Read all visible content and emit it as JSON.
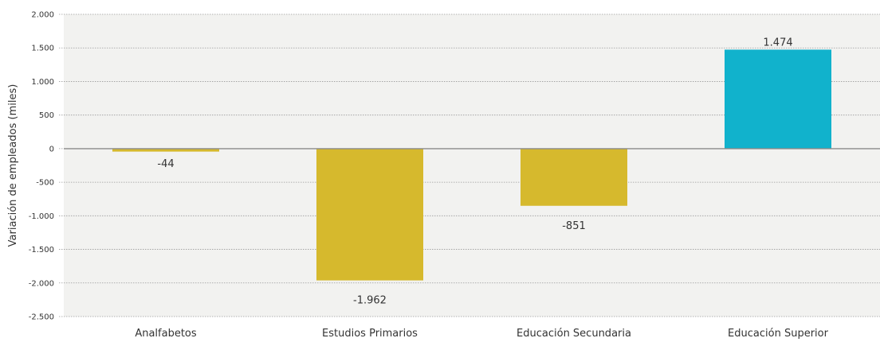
{
  "chart_data": {
    "type": "bar",
    "title": "",
    "xlabel": "",
    "ylabel": "Variación de empleados (miles)",
    "categories": [
      "Analfabetos",
      "Estudios Primarios",
      "Educación Secundaria",
      "Educación Superior"
    ],
    "values": [
      -44,
      -1962,
      -851,
      1474
    ],
    "data_labels": [
      "-44",
      "-1.962",
      "-851",
      "1.474"
    ],
    "ylim": [
      -2500,
      2000
    ],
    "yticks": [
      2000,
      1500,
      1000,
      500,
      0,
      -500,
      -1000,
      -1500,
      -2000,
      -2500
    ],
    "ytick_labels": [
      "2.000",
      "1.500",
      "1.000",
      "500",
      "0",
      "-500",
      "-1.000",
      "-1.500",
      "-2.000",
      "-2.500"
    ],
    "grid": true,
    "colors": {
      "negative": "#d6b92d",
      "positive": "#11b2cc",
      "plot_background": "#f2f2f0",
      "grid": "#9a9a9a",
      "zero_line": "#8a8a8a"
    }
  }
}
